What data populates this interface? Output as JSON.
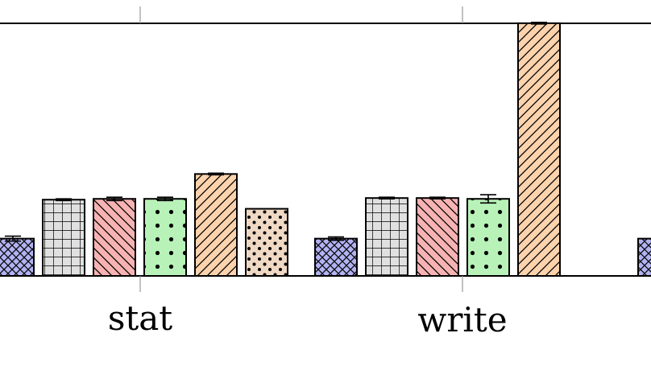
{
  "chart_data": {
    "type": "bar",
    "categories": [
      "stat",
      "write"
    ],
    "series": [
      {
        "color": "#b3b3f2",
        "pattern": "crosshatch",
        "values": [
          0.45,
          0.45
        ],
        "errors": [
          0.03,
          0.02
        ]
      },
      {
        "color": "#e0e0e0",
        "pattern": "grid",
        "values": [
          0.92,
          0.94
        ],
        "errors": [
          0.01,
          0.01
        ]
      },
      {
        "color": "#f7b3b3",
        "pattern": "diagonal-back",
        "values": [
          0.93,
          0.94
        ],
        "errors": [
          0.02,
          0.01
        ]
      },
      {
        "color": "#b8f2b8",
        "pattern": "dots",
        "values": [
          0.93,
          0.93
        ],
        "errors": [
          0.02,
          0.05
        ]
      },
      {
        "color": "#fcd3ad",
        "pattern": "diagonal",
        "values": [
          1.23,
          3.05
        ],
        "errors": [
          0.01,
          0.01
        ]
      },
      {
        "color": "#f0d9c4",
        "pattern": "dots-small",
        "values": [
          0.81,
          0.0
        ],
        "errors": [
          0.0,
          0.0
        ]
      }
    ],
    "partial_next_category_first_value": 0.45,
    "ylim": [
      0,
      3.2
    ],
    "legend": "none",
    "grid": false
  }
}
